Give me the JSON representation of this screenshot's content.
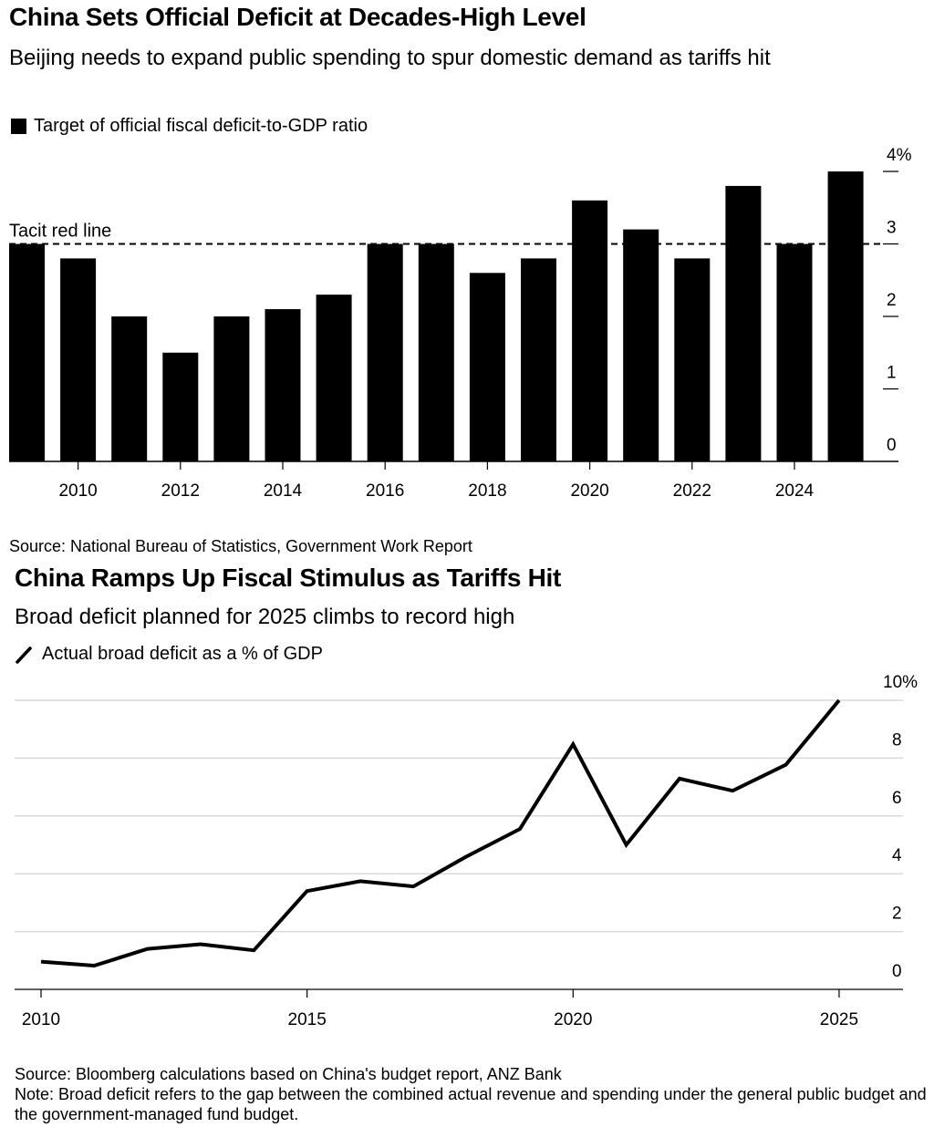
{
  "chart_data": [
    {
      "type": "bar",
      "title": "China Sets Official Deficit at Decades-High Level",
      "subtitle": "Beijing needs to expand public spending to spur domestic demand as tariffs hit",
      "legend": [
        {
          "name": "Target of official fiscal deficit-to-GDP ratio",
          "color": "#000000",
          "marker": "square"
        }
      ],
      "categories": [
        "2009",
        "2010",
        "2011",
        "2012",
        "2013",
        "2014",
        "2015",
        "2016",
        "2017",
        "2018",
        "2019",
        "2020",
        "2021",
        "2022",
        "2023",
        "2024",
        "2025"
      ],
      "values": [
        3.0,
        2.8,
        2.0,
        1.5,
        2.0,
        2.1,
        2.3,
        3.0,
        3.0,
        2.6,
        2.8,
        3.6,
        3.2,
        2.8,
        3.8,
        3.0,
        4.0
      ],
      "x_tick_labels": [
        "2010",
        "2012",
        "2014",
        "2016",
        "2018",
        "2020",
        "2022",
        "2024"
      ],
      "y_tick_labels": [
        "0",
        "1",
        "2",
        "3",
        "4%"
      ],
      "y_ticks": [
        0,
        1,
        2,
        3,
        4
      ],
      "ylim": [
        0,
        4
      ],
      "xlabel": "",
      "ylabel": "",
      "y_axis_side": "right",
      "annotation": {
        "label": "Tacit red line",
        "value": 3.0,
        "style": "dashed"
      },
      "source": "Source: National Bureau of Statistics, Government Work Report"
    },
    {
      "type": "line",
      "title": "China Ramps Up Fiscal Stimulus as Tariffs Hit",
      "subtitle": "Broad deficit planned for 2025 climbs to record high",
      "legend": [
        {
          "name": "Actual broad deficit as a % of GDP",
          "color": "#000000",
          "marker": "line"
        }
      ],
      "x": [
        2010,
        2011,
        2012,
        2013,
        2014,
        2015,
        2016,
        2017,
        2018,
        2019,
        2020,
        2021,
        2022,
        2023,
        2024,
        2025
      ],
      "series": [
        {
          "name": "Actual broad deficit as a % of GDP",
          "values": [
            0.96,
            0.82,
            1.4,
            1.56,
            1.35,
            3.4,
            3.74,
            3.56,
            4.6,
            5.55,
            8.48,
            5.0,
            7.29,
            6.87,
            7.77,
            10.0
          ]
        }
      ],
      "x_tick_labels": [
        "2010",
        "2015",
        "2020",
        "2025"
      ],
      "x_ticks": [
        2010,
        2015,
        2020,
        2025
      ],
      "xlim": [
        2009.0,
        2026.2
      ],
      "y_tick_labels": [
        "0",
        "2",
        "4",
        "6",
        "8",
        "10%"
      ],
      "y_ticks": [
        0,
        2,
        4,
        6,
        8,
        10
      ],
      "ylim": [
        0,
        10
      ],
      "grid": true,
      "y_axis_side": "right",
      "xlabel": "",
      "ylabel": "",
      "source": "Source: Bloomberg calculations based on China's budget report, ANZ Bank",
      "note": "Note: Broad deficit refers to the gap between the combined actual revenue and spending under the general public budget and the government-managed fund budget."
    }
  ]
}
